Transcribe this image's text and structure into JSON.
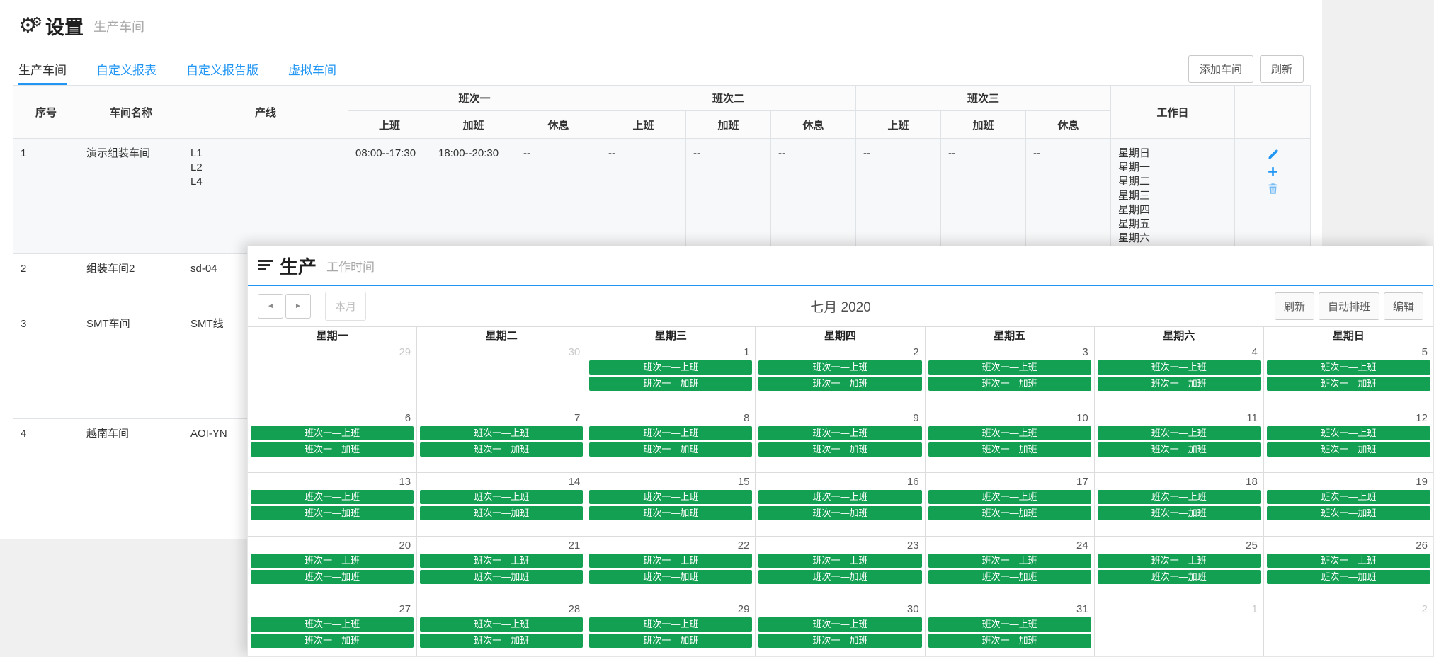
{
  "colors": {
    "accent_blue": "#2196f3",
    "shift_green": "#14a053"
  },
  "icons": {
    "gear_glyph": "⚙",
    "prev_glyph": "◄",
    "next_glyph": "►"
  },
  "settings_window": {
    "header": {
      "icon": "gear-icon",
      "title": "设置",
      "subtitle": "生产车间"
    },
    "tabs": [
      {
        "label": "生产车间",
        "active": true
      },
      {
        "label": "自定义报表",
        "active": false
      },
      {
        "label": "自定义报告版",
        "active": false
      },
      {
        "label": "虚拟车间",
        "active": false
      }
    ],
    "actions": {
      "add_workshop": "添加车间",
      "refresh": "刷新"
    },
    "table": {
      "headers": {
        "index": "序号",
        "name": "车间名称",
        "lines": "产线",
        "shift1": "班次一",
        "shift2": "班次二",
        "shift3": "班次三",
        "work": "上班",
        "overtime": "加班",
        "rest": "休息",
        "workdays": "工作日"
      },
      "rows": [
        {
          "index": "1",
          "name": "演示组装车间",
          "lines": [
            "L1",
            "L2",
            "L4"
          ],
          "shift1": {
            "work": "08:00--17:30",
            "overtime": "18:00--20:30",
            "rest": "--"
          },
          "shift2": {
            "work": "--",
            "overtime": "--",
            "rest": "--"
          },
          "shift3": {
            "work": "--",
            "overtime": "--",
            "rest": "--"
          },
          "workdays": [
            "星期日",
            "星期一",
            "星期二",
            "星期三",
            "星期四",
            "星期五",
            "星期六"
          ],
          "actions": [
            "edit",
            "add",
            "delete"
          ]
        },
        {
          "index": "2",
          "name": "组装车间2",
          "lines": [
            "sd-04"
          ]
        },
        {
          "index": "3",
          "name": "SMT车间",
          "lines": [
            "SMT线"
          ]
        },
        {
          "index": "4",
          "name": "越南车间",
          "lines": [
            "AOI-YN"
          ]
        }
      ]
    }
  },
  "production_window": {
    "header": {
      "icon": "list-icon",
      "title": "生产",
      "subtitle": "工作时间"
    },
    "toolbar": {
      "this_month": "本月",
      "month_title": "七月 2020",
      "refresh": "刷新",
      "auto_schedule": "自动排班",
      "edit": "编辑"
    },
    "calendar": {
      "day_headers": [
        "星期一",
        "星期二",
        "星期三",
        "星期四",
        "星期五",
        "星期六",
        "星期日"
      ],
      "shift_work_label": "班次一—上班",
      "shift_overtime_label": "班次一—加班",
      "weeks": [
        [
          {
            "date": "29",
            "other_month": true,
            "has_shifts": false
          },
          {
            "date": "30",
            "other_month": true,
            "has_shifts": false
          },
          {
            "date": "1",
            "other_month": false,
            "has_shifts": true
          },
          {
            "date": "2",
            "other_month": false,
            "has_shifts": true
          },
          {
            "date": "3",
            "other_month": false,
            "has_shifts": true
          },
          {
            "date": "4",
            "other_month": false,
            "has_shifts": true
          },
          {
            "date": "5",
            "other_month": false,
            "has_shifts": true
          }
        ],
        [
          {
            "date": "6",
            "other_month": false,
            "has_shifts": true
          },
          {
            "date": "7",
            "other_month": false,
            "has_shifts": true
          },
          {
            "date": "8",
            "other_month": false,
            "has_shifts": true
          },
          {
            "date": "9",
            "other_month": false,
            "has_shifts": true
          },
          {
            "date": "10",
            "other_month": false,
            "has_shifts": true
          },
          {
            "date": "11",
            "other_month": false,
            "has_shifts": true
          },
          {
            "date": "12",
            "other_month": false,
            "has_shifts": true
          }
        ],
        [
          {
            "date": "13",
            "other_month": false,
            "has_shifts": true
          },
          {
            "date": "14",
            "other_month": false,
            "has_shifts": true
          },
          {
            "date": "15",
            "other_month": false,
            "has_shifts": true
          },
          {
            "date": "16",
            "other_month": false,
            "has_shifts": true
          },
          {
            "date": "17",
            "other_month": false,
            "has_shifts": true
          },
          {
            "date": "18",
            "other_month": false,
            "has_shifts": true
          },
          {
            "date": "19",
            "other_month": false,
            "has_shifts": true
          }
        ],
        [
          {
            "date": "20",
            "other_month": false,
            "has_shifts": true
          },
          {
            "date": "21",
            "other_month": false,
            "has_shifts": true
          },
          {
            "date": "22",
            "other_month": false,
            "has_shifts": true
          },
          {
            "date": "23",
            "other_month": false,
            "has_shifts": true
          },
          {
            "date": "24",
            "other_month": false,
            "has_shifts": true
          },
          {
            "date": "25",
            "other_month": false,
            "has_shifts": true
          },
          {
            "date": "26",
            "other_month": false,
            "has_shifts": true
          }
        ],
        [
          {
            "date": "27",
            "other_month": false,
            "has_shifts": true
          },
          {
            "date": "28",
            "other_month": false,
            "has_shifts": true
          },
          {
            "date": "29",
            "other_month": false,
            "has_shifts": true
          },
          {
            "date": "30",
            "other_month": false,
            "has_shifts": true
          },
          {
            "date": "31",
            "other_month": false,
            "has_shifts": true
          },
          {
            "date": "1",
            "other_month": true,
            "has_shifts": false
          },
          {
            "date": "2",
            "other_month": true,
            "has_shifts": false
          }
        ]
      ]
    }
  }
}
